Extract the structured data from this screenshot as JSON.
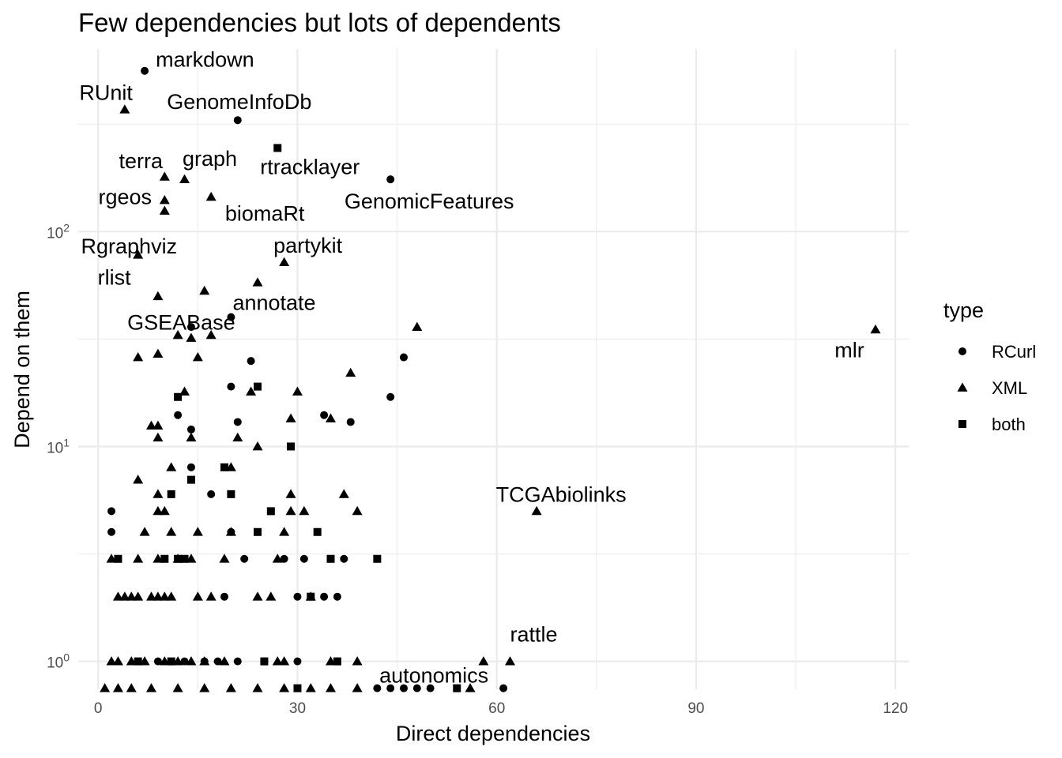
{
  "chart_data": {
    "type": "scatter",
    "title": "Few dependencies but lots of dependents",
    "xlabel": "Direct dependencies",
    "ylabel": "Depend on them",
    "xlim": [
      -3,
      122
    ],
    "ylim_log10": [
      -0.13,
      2.85
    ],
    "y_scale": "log10",
    "x_ticks": [
      0,
      30,
      60,
      90,
      120
    ],
    "x_tick_labels": [
      "0",
      "30",
      "60",
      "90",
      "120"
    ],
    "y_ticks": [
      1,
      10,
      100
    ],
    "y_tick_labels": [
      {
        "base": "10",
        "exp": "0"
      },
      {
        "base": "10",
        "exp": "1"
      },
      {
        "base": "10",
        "exp": "2"
      }
    ],
    "grid": true,
    "legend": {
      "title": "type",
      "position": "right",
      "entries": [
        {
          "label": "RCurl",
          "shape": "circle"
        },
        {
          "label": "XML",
          "shape": "triangle"
        },
        {
          "label": "both",
          "shape": "square"
        }
      ]
    },
    "series": [
      {
        "name": "RCurl",
        "shape": "circle",
        "points": [
          [
            7,
            560
          ],
          [
            21,
            330
          ],
          [
            44,
            175
          ],
          [
            14,
            36
          ],
          [
            20,
            40
          ],
          [
            23,
            25
          ],
          [
            46,
            26
          ],
          [
            20,
            19
          ],
          [
            44,
            17
          ],
          [
            12,
            14
          ],
          [
            34,
            14
          ],
          [
            14,
            12
          ],
          [
            21,
            13
          ],
          [
            38,
            13
          ],
          [
            14,
            8
          ],
          [
            17,
            6
          ],
          [
            2,
            5
          ],
          [
            2,
            4
          ],
          [
            20,
            4
          ],
          [
            22,
            3
          ],
          [
            28,
            3
          ],
          [
            31,
            3
          ],
          [
            37,
            3
          ],
          [
            19,
            2
          ],
          [
            30,
            2
          ],
          [
            34,
            2
          ],
          [
            36,
            2
          ],
          [
            13,
            1
          ],
          [
            21,
            1
          ],
          [
            25,
            1
          ],
          [
            30,
            1
          ],
          [
            36,
            1
          ],
          [
            9,
            1
          ],
          [
            16,
            1
          ],
          [
            18,
            1
          ],
          [
            42,
            0.75
          ],
          [
            44,
            0.75
          ],
          [
            46,
            0.75
          ],
          [
            48,
            0.75
          ],
          [
            50,
            0.75
          ],
          [
            61,
            0.75
          ]
        ]
      },
      {
        "name": "XML",
        "shape": "triangle",
        "points": [
          [
            4,
            370
          ],
          [
            10,
            180
          ],
          [
            13,
            175
          ],
          [
            17,
            145
          ],
          [
            10,
            140
          ],
          [
            10,
            125
          ],
          [
            6,
            78
          ],
          [
            28,
            72
          ],
          [
            24,
            58
          ],
          [
            16,
            53
          ],
          [
            9,
            50
          ],
          [
            48,
            36
          ],
          [
            117,
            35
          ],
          [
            12,
            33
          ],
          [
            14,
            32
          ],
          [
            17,
            33
          ],
          [
            6,
            26
          ],
          [
            9,
            27
          ],
          [
            15,
            26
          ],
          [
            38,
            22
          ],
          [
            13,
            18
          ],
          [
            23,
            18
          ],
          [
            30,
            18
          ],
          [
            35,
            13.5
          ],
          [
            8,
            12.5
          ],
          [
            9,
            12.5
          ],
          [
            29,
            13.5
          ],
          [
            9,
            11
          ],
          [
            14,
            11
          ],
          [
            21,
            11
          ],
          [
            24,
            10
          ],
          [
            11,
            8
          ],
          [
            20,
            8
          ],
          [
            6,
            7
          ],
          [
            9,
            6
          ],
          [
            29,
            6
          ],
          [
            37,
            6
          ],
          [
            9,
            5
          ],
          [
            10,
            5
          ],
          [
            29,
            5
          ],
          [
            31,
            5
          ],
          [
            39,
            5
          ],
          [
            66,
            5
          ],
          [
            7,
            4
          ],
          [
            11,
            4
          ],
          [
            15,
            4
          ],
          [
            20,
            4
          ],
          [
            28,
            4
          ],
          [
            2,
            3
          ],
          [
            6,
            3
          ],
          [
            9,
            3
          ],
          [
            12,
            3
          ],
          [
            14,
            3
          ],
          [
            19,
            3
          ],
          [
            27,
            3
          ],
          [
            3,
            2
          ],
          [
            4,
            2
          ],
          [
            5,
            2
          ],
          [
            6,
            2
          ],
          [
            8,
            2
          ],
          [
            9,
            2
          ],
          [
            10,
            2
          ],
          [
            11,
            2
          ],
          [
            15,
            2
          ],
          [
            17,
            2
          ],
          [
            24,
            2
          ],
          [
            26,
            2
          ],
          [
            32,
            2
          ],
          [
            2,
            1
          ],
          [
            3,
            1
          ],
          [
            5,
            1
          ],
          [
            7,
            1
          ],
          [
            10,
            1
          ],
          [
            12,
            1
          ],
          [
            14,
            1
          ],
          [
            16,
            1
          ],
          [
            19,
            1
          ],
          [
            27,
            1
          ],
          [
            28,
            1
          ],
          [
            35,
            1
          ],
          [
            39,
            1
          ],
          [
            58,
            1
          ],
          [
            62,
            1
          ],
          [
            1,
            0.75
          ],
          [
            3,
            0.75
          ],
          [
            5,
            0.75
          ],
          [
            8,
            0.75
          ],
          [
            12,
            0.75
          ],
          [
            16,
            0.75
          ],
          [
            20,
            0.75
          ],
          [
            24,
            0.75
          ],
          [
            28,
            0.75
          ],
          [
            32,
            0.75
          ],
          [
            35,
            0.75
          ],
          [
            39,
            0.75
          ],
          [
            56,
            0.75
          ]
        ]
      },
      {
        "name": "both",
        "shape": "square",
        "points": [
          [
            27,
            245
          ],
          [
            24,
            19
          ],
          [
            12,
            17
          ],
          [
            29,
            10
          ],
          [
            14,
            7
          ],
          [
            19,
            8
          ],
          [
            11,
            6
          ],
          [
            20,
            6
          ],
          [
            26,
            5
          ],
          [
            24,
            4
          ],
          [
            33,
            4
          ],
          [
            3,
            3
          ],
          [
            10,
            3
          ],
          [
            12,
            3
          ],
          [
            13,
            3
          ],
          [
            35,
            3
          ],
          [
            42,
            3
          ],
          [
            32,
            2
          ],
          [
            25,
            1
          ],
          [
            36,
            1
          ],
          [
            11,
            1
          ],
          [
            6,
            1
          ],
          [
            30,
            0.75
          ],
          [
            54,
            0.75
          ]
        ]
      }
    ],
    "annotations": [
      {
        "text": "markdown",
        "x": 7,
        "y": 560
      },
      {
        "text": "RUnit",
        "x": 4,
        "y": 370
      },
      {
        "text": "GenomeInfoDb",
        "x": 21,
        "y": 330
      },
      {
        "text": "terra",
        "x": 10,
        "y": 180
      },
      {
        "text": "graph",
        "x": 13,
        "y": 175
      },
      {
        "text": "rtracklayer",
        "x": 27,
        "y": 245
      },
      {
        "text": "rgeos",
        "x": 10,
        "y": 140
      },
      {
        "text": "GenomicFeatures",
        "x": 44,
        "y": 175
      },
      {
        "text": "biomaRt",
        "x": 17,
        "y": 145
      },
      {
        "text": "Rgraphviz",
        "x": 10,
        "y": 125
      },
      {
        "text": "partykit",
        "x": 28,
        "y": 72
      },
      {
        "text": "rlist",
        "x": 6,
        "y": 78
      },
      {
        "text": "annotate",
        "x": 24,
        "y": 58
      },
      {
        "text": "GSEABase",
        "x": 20,
        "y": 40
      },
      {
        "text": "mlr",
        "x": 117,
        "y": 35
      },
      {
        "text": "TCGAbiolinks",
        "x": 66,
        "y": 5
      },
      {
        "text": "rattle",
        "x": 62,
        "y": 1
      },
      {
        "text": "autonomics",
        "x": 61,
        "y": 0.75
      }
    ]
  }
}
